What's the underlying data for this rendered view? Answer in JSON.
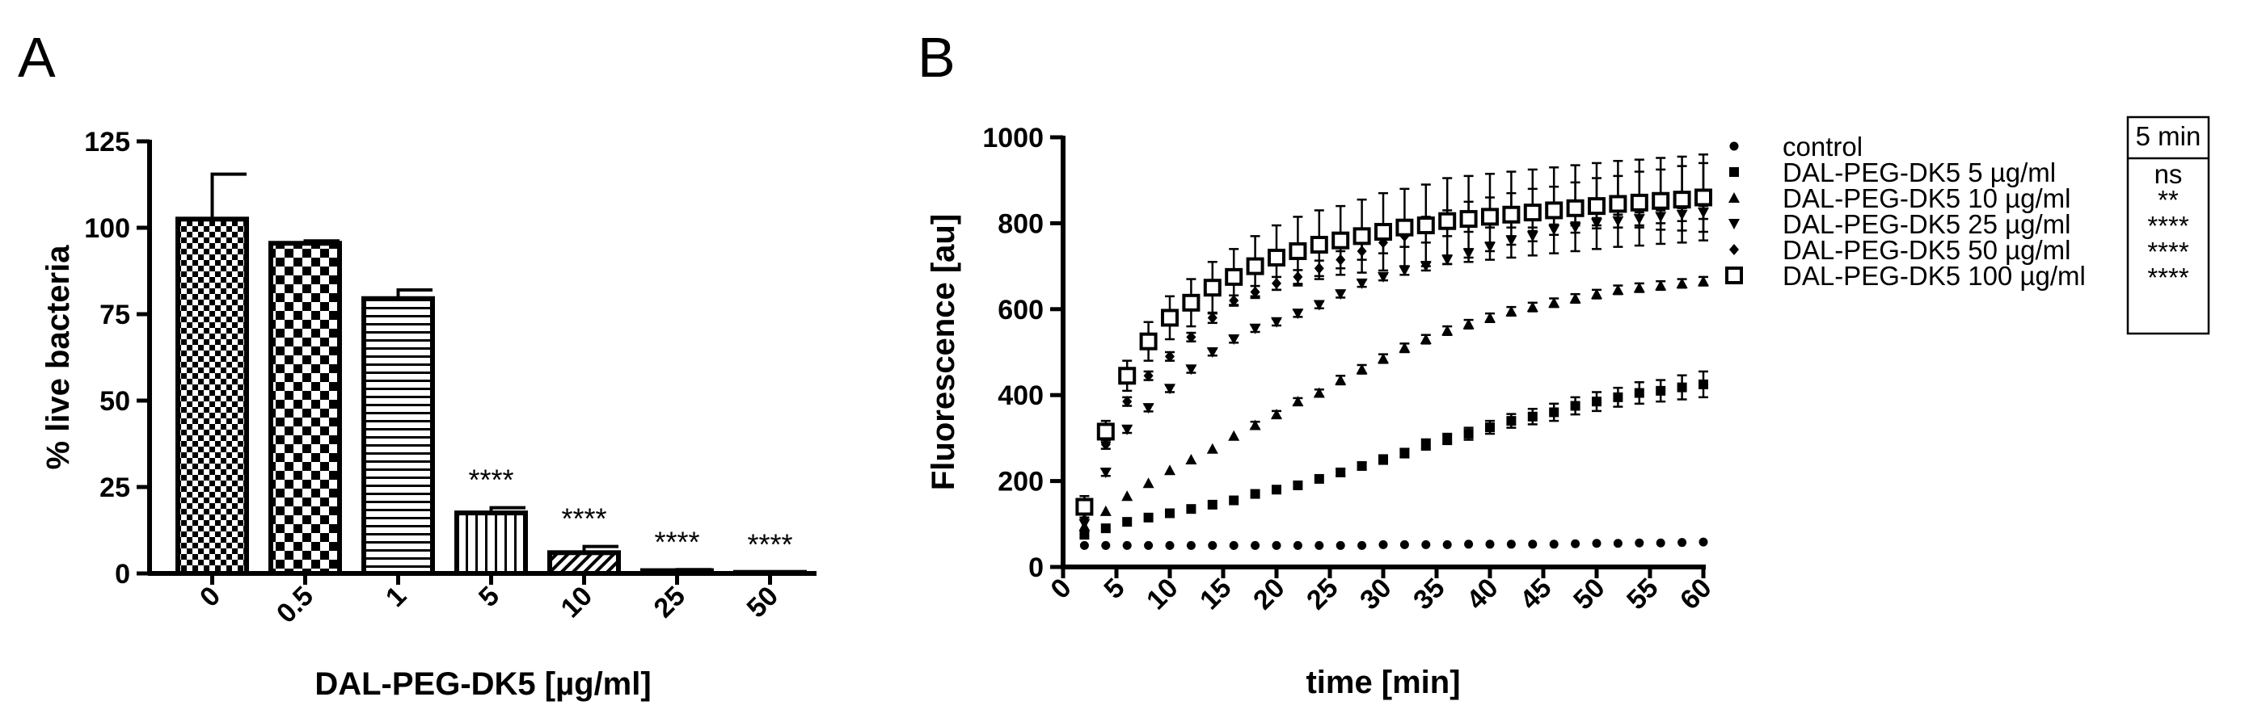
{
  "panels": {
    "a_label": "A",
    "b_label": "B"
  },
  "chart_data": [
    {
      "type": "bar",
      "panel": "A",
      "categories": [
        "0",
        "0.5",
        "1",
        "5",
        "10",
        "25",
        "50"
      ],
      "values": [
        102.5,
        95.5,
        79.5,
        17.5,
        6,
        0.8,
        0.3
      ],
      "errors": [
        13,
        0.7,
        2.5,
        1.5,
        1.8,
        0.3,
        0.1
      ],
      "significance": [
        "",
        "",
        "",
        "****",
        "****",
        "****",
        "****"
      ],
      "patterns": [
        "fine-checker",
        "checker",
        "horizontal-lines",
        "vertical-lines",
        "diagonal-lines",
        "horizontal-lines",
        "fine-checker"
      ],
      "xlabel": "DAL-PEG-DK5 [µg/ml]",
      "ylabel": "% live bacteria",
      "ylim": [
        0,
        125
      ],
      "yticks": [
        0,
        25,
        50,
        75,
        100,
        125
      ]
    },
    {
      "type": "scatter",
      "panel": "B",
      "x": [
        2,
        4,
        6,
        8,
        10,
        12,
        14,
        16,
        18,
        20,
        22,
        24,
        26,
        28,
        30,
        32,
        34,
        36,
        38,
        40,
        42,
        44,
        46,
        48,
        50,
        52,
        54,
        56,
        58,
        60
      ],
      "series": [
        {
          "name": "control",
          "marker": "circle",
          "sig": "",
          "values": [
            50,
            50,
            50,
            50,
            50,
            50,
            50,
            50,
            50,
            50,
            50,
            50,
            50,
            50,
            52,
            52,
            52,
            52,
            53,
            53,
            53,
            53,
            53,
            54,
            55,
            55,
            56,
            56,
            57,
            58
          ],
          "errors": [
            2,
            2,
            2,
            2,
            2,
            2,
            2,
            2,
            2,
            2,
            2,
            2,
            2,
            2,
            2,
            2,
            2,
            2,
            2,
            2,
            2,
            2,
            2,
            2,
            2,
            2,
            2,
            2,
            2,
            2
          ]
        },
        {
          "name": "DAL-PEG-DK5 5 µg/ml",
          "marker": "square",
          "sig": "ns",
          "values": [
            75,
            90,
            105,
            115,
            125,
            135,
            145,
            155,
            170,
            180,
            190,
            205,
            220,
            235,
            250,
            265,
            285,
            298,
            310,
            325,
            340,
            350,
            360,
            375,
            385,
            395,
            405,
            410,
            418,
            425
          ],
          "errors": [
            5,
            5,
            5,
            5,
            5,
            5,
            5,
            5,
            6,
            6,
            6,
            6,
            8,
            8,
            10,
            10,
            12,
            12,
            14,
            15,
            16,
            18,
            20,
            20,
            22,
            22,
            25,
            25,
            28,
            30
          ]
        },
        {
          "name": "DAL-PEG-DK5 10 µg/ml",
          "marker": "triangle-up",
          "sig": "**",
          "values": [
            95,
            130,
            165,
            195,
            225,
            250,
            275,
            305,
            330,
            355,
            385,
            405,
            435,
            460,
            485,
            510,
            530,
            550,
            565,
            580,
            595,
            605,
            615,
            625,
            635,
            645,
            650,
            655,
            660,
            665
          ],
          "errors": [
            5,
            5,
            5,
            5,
            5,
            6,
            6,
            6,
            8,
            8,
            8,
            8,
            10,
            10,
            10,
            10,
            10,
            10,
            10,
            10,
            10,
            10,
            10,
            10,
            10,
            10,
            10,
            10,
            10,
            10
          ]
        },
        {
          "name": "DAL-PEG-DK5 25 µg/ml",
          "marker": "triangle-down",
          "sig": "****",
          "values": [
            100,
            220,
            320,
            370,
            415,
            460,
            500,
            530,
            555,
            570,
            590,
            610,
            635,
            660,
            675,
            690,
            700,
            715,
            730,
            745,
            760,
            770,
            785,
            790,
            800,
            805,
            810,
            815,
            820,
            825
          ],
          "errors": [
            5,
            8,
            8,
            8,
            8,
            8,
            8,
            8,
            8,
            8,
            8,
            8,
            8,
            8,
            8,
            10,
            10,
            10,
            10,
            10,
            10,
            12,
            12,
            12,
            12,
            15,
            15,
            15,
            15,
            15
          ]
        },
        {
          "name": "DAL-PEG-DK5 50 µg/ml",
          "marker": "diamond",
          "sig": "****",
          "values": [
            110,
            285,
            385,
            445,
            490,
            535,
            580,
            620,
            640,
            660,
            675,
            695,
            715,
            735,
            755,
            770,
            785,
            800,
            815,
            825,
            830,
            835,
            840,
            845,
            850,
            850,
            855,
            855,
            858,
            860
          ],
          "errors": [
            5,
            10,
            10,
            10,
            10,
            10,
            12,
            12,
            14,
            15,
            16,
            18,
            20,
            20,
            25,
            25,
            30,
            30,
            35,
            35,
            40,
            45,
            45,
            50,
            55,
            60,
            65,
            70,
            75,
            80
          ]
        },
        {
          "name": "DAL-PEG-DK5 100 µg/ml",
          "marker": "open-square",
          "sig": "****",
          "values": [
            140,
            315,
            445,
            525,
            580,
            615,
            650,
            675,
            700,
            720,
            735,
            750,
            760,
            770,
            780,
            790,
            795,
            805,
            810,
            815,
            820,
            825,
            830,
            835,
            840,
            845,
            848,
            852,
            855,
            860
          ],
          "errors": [
            25,
            25,
            35,
            45,
            50,
            55,
            60,
            65,
            70,
            75,
            80,
            80,
            80,
            85,
            90,
            90,
            95,
            100,
            100,
            100,
            100,
            100,
            100,
            100,
            100,
            100,
            100,
            100,
            100,
            100
          ]
        }
      ],
      "xlabel": "time [min]",
      "ylabel": "Fluorescence [au]",
      "xlim": [
        0,
        60
      ],
      "ylim": [
        0,
        1000
      ],
      "xticks": [
        0,
        5,
        10,
        15,
        20,
        25,
        30,
        35,
        40,
        45,
        50,
        55,
        60
      ],
      "yticks": [
        0,
        200,
        400,
        600,
        800,
        1000
      ],
      "legend_header": "5 min"
    }
  ]
}
